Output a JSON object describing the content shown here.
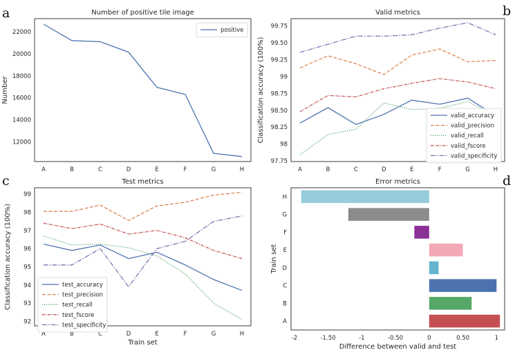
{
  "panel_letters": [
    "a",
    "b",
    "c",
    "d"
  ],
  "chart_data": [
    {
      "panel": "a",
      "type": "line",
      "title": "Number of positive tile image",
      "xlabel": "",
      "ylabel": "Number",
      "categories": [
        "A",
        "B",
        "C",
        "D",
        "E",
        "F",
        "G",
        "H"
      ],
      "ylim": [
        10200,
        23200
      ],
      "yticks": [
        12000,
        14000,
        16000,
        18000,
        20000,
        22000
      ],
      "legend_position": "top-right",
      "series": [
        {
          "name": "positive",
          "color": "#4c72b0",
          "dash": "solid",
          "values": [
            22700,
            21200,
            21100,
            20150,
            16950,
            16300,
            10950,
            10650
          ]
        }
      ]
    },
    {
      "panel": "b",
      "type": "line",
      "title": "Valid metrics",
      "xlabel": "",
      "ylabel": "Classification accuracy (100%)",
      "categories": [
        "A",
        "B",
        "C",
        "D",
        "E",
        "F",
        "G",
        "H"
      ],
      "ylim": [
        97.74,
        99.86
      ],
      "yticks": [
        97.75,
        98.0,
        98.25,
        98.5,
        98.75,
        99.0,
        99.25,
        99.5,
        99.75
      ],
      "legend_position": "lower-right",
      "series": [
        {
          "name": "valid_accuracy",
          "color": "#4c72b0",
          "dash": "solid",
          "values": [
            98.31,
            98.54,
            98.29,
            98.44,
            98.65,
            98.59,
            98.68,
            98.42
          ]
        },
        {
          "name": "valid_precision",
          "color": "#dd8452",
          "dash": "dashed",
          "values": [
            99.13,
            99.31,
            99.19,
            99.03,
            99.32,
            99.41,
            99.22,
            99.24
          ]
        },
        {
          "name": "valid_recall",
          "color": "#55a868",
          "dash": "dotted",
          "values": [
            97.84,
            98.14,
            98.22,
            98.61,
            98.51,
            98.53,
            98.63,
            98.42
          ]
        },
        {
          "name": "valid_fscore",
          "color": "#c44e52",
          "dash": "dashdot",
          "values": [
            98.48,
            98.72,
            98.7,
            98.82,
            98.9,
            98.97,
            98.92,
            98.82
          ]
        },
        {
          "name": "valid_specificity",
          "color": "#8172b3",
          "dash": "dashdotwide",
          "values": [
            99.36,
            99.48,
            99.6,
            99.6,
            99.62,
            99.72,
            99.8,
            99.62
          ]
        }
      ]
    },
    {
      "panel": "c",
      "type": "line",
      "title": "Test metrics",
      "xlabel": "Train set",
      "ylabel": "Classification accuracy (100%)",
      "categories": [
        "A",
        "B",
        "C",
        "D",
        "E",
        "F",
        "G",
        "H"
      ],
      "ylim": [
        91.75,
        99.35
      ],
      "yticks": [
        92,
        93,
        94,
        95,
        96,
        97,
        98,
        99
      ],
      "legend_position": "lower-left",
      "series": [
        {
          "name": "test_accuracy",
          "color": "#4c72b0",
          "dash": "solid",
          "values": [
            96.25,
            95.9,
            96.2,
            95.45,
            95.8,
            95.1,
            94.3,
            93.7
          ]
        },
        {
          "name": "test_precision",
          "color": "#dd8452",
          "dash": "dashed",
          "values": [
            98.05,
            98.05,
            98.4,
            97.55,
            98.35,
            98.55,
            98.95,
            99.1
          ]
        },
        {
          "name": "test_recall",
          "color": "#55a868",
          "dash": "dotted",
          "values": [
            96.7,
            96.2,
            96.25,
            96.05,
            95.6,
            94.6,
            93.0,
            92.1
          ]
        },
        {
          "name": "test_fscore",
          "color": "#c44e52",
          "dash": "dashdot",
          "values": [
            97.4,
            97.1,
            97.35,
            96.8,
            97.0,
            96.6,
            95.9,
            95.45
          ]
        },
        {
          "name": "test_specificity",
          "color": "#8172b3",
          "dash": "dashdotwide",
          "values": [
            95.1,
            95.1,
            96.0,
            93.9,
            96.0,
            96.4,
            97.5,
            97.8
          ]
        }
      ]
    },
    {
      "panel": "d",
      "type": "bar",
      "orientation": "horizontal",
      "title": "Error metrics",
      "xlabel": "Difference between valid and test",
      "ylabel": "Train set",
      "categories": [
        "A",
        "B",
        "C",
        "D",
        "E",
        "F",
        "G",
        "H"
      ],
      "values": [
        1.05,
        0.63,
        1.0,
        0.14,
        0.5,
        -0.22,
        -1.2,
        -1.9
      ],
      "colors": [
        "#c44e52",
        "#55a868",
        "#4c72b0",
        "#64b5cd",
        "#f4a9b6",
        "#8c3196",
        "#8c8c8c",
        "#96ccdb"
      ],
      "xlim": [
        -2.05,
        1.12
      ],
      "xticks": [
        -2.0,
        -1.5,
        -1.0,
        -0.5,
        0.0,
        0.5,
        1.0
      ]
    }
  ]
}
